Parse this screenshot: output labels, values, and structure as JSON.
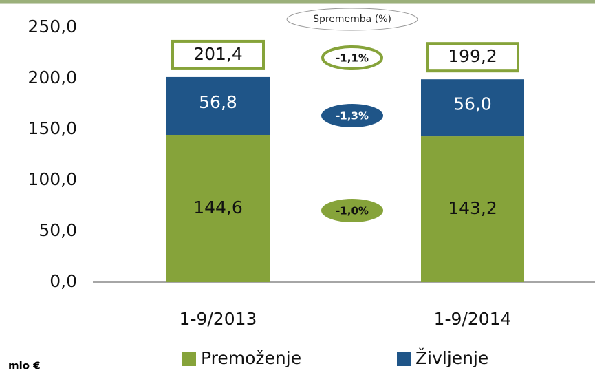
{
  "chart_data": {
    "type": "stacked_bar",
    "categories": [
      "1-9/2013",
      "1-9/2014"
    ],
    "series": [
      {
        "name": "Premoženje",
        "color": "#86a33a",
        "values": [
          144.6,
          143.2
        ],
        "value_labels": [
          "144,6",
          "143,2"
        ]
      },
      {
        "name": "Življenje",
        "color": "#1f5588",
        "values": [
          56.8,
          56.0
        ],
        "value_labels": [
          "56,8",
          "56,0"
        ]
      }
    ],
    "totals": {
      "values": [
        201.4,
        199.2
      ],
      "value_labels": [
        "201,4",
        "199,2"
      ]
    },
    "changes": {
      "title": "Sprememba (%)",
      "total": {
        "value": -1.1,
        "label": "-1,1%"
      },
      "series": [
        {
          "value": -1.0,
          "label": "-1,0%"
        },
        {
          "value": -1.3,
          "label": "-1,3%"
        }
      ]
    },
    "unit_label": "mio €",
    "ylim": [
      0,
      250
    ],
    "yticks": [
      {
        "value": 0,
        "label": "0,0"
      },
      {
        "value": 50,
        "label": "50,0"
      },
      {
        "value": 100,
        "label": "100,0"
      },
      {
        "value": 150,
        "label": "150,0"
      },
      {
        "value": 200,
        "label": "200,0"
      },
      {
        "value": 250,
        "label": "250,0"
      }
    ],
    "legend": "bottom"
  }
}
